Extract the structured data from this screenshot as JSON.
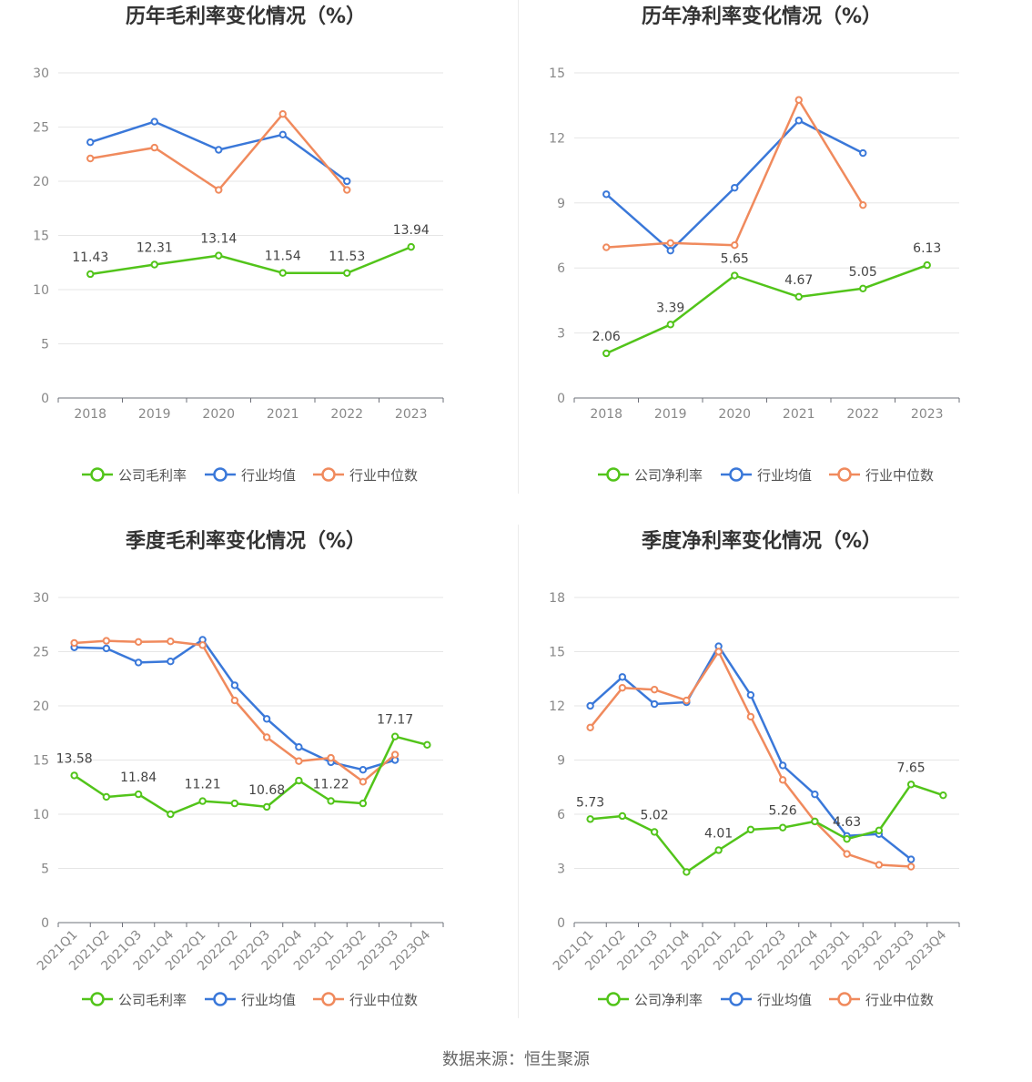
{
  "footer": {
    "source": "数据来源：恒生聚源"
  },
  "colors": {
    "company": "#52c41a",
    "avg": "#3a78d9",
    "median": "#f08a5d"
  },
  "legend": {
    "annual_gross": [
      "公司毛利率",
      "行业均值",
      "行业中位数"
    ],
    "annual_net": [
      "公司净利率",
      "行业均值",
      "行业中位数"
    ],
    "quarter_gross": [
      "公司毛利率",
      "行业均值",
      "行业中位数"
    ],
    "quarter_net": [
      "公司净利率",
      "行业均值",
      "行业中位数"
    ]
  },
  "chart_data": [
    {
      "type": "line",
      "title": "历年毛利率变化情况（%）",
      "categories": [
        "2018",
        "2019",
        "2020",
        "2021",
        "2022",
        "2023"
      ],
      "ylim": [
        0,
        30
      ],
      "yticks": [
        0,
        5,
        10,
        15,
        20,
        25,
        30
      ],
      "grid": true,
      "legend_position": "bottom",
      "series": [
        {
          "name": "公司毛利率",
          "values": [
            11.43,
            12.31,
            13.14,
            11.54,
            11.53,
            13.94
          ],
          "labels": [
            "11.43",
            "12.31",
            "13.14",
            "11.54",
            "11.53",
            "13.94"
          ]
        },
        {
          "name": "行业均值",
          "values": [
            23.6,
            25.5,
            22.9,
            24.3,
            20.0,
            null
          ]
        },
        {
          "name": "行业中位数",
          "values": [
            22.1,
            23.1,
            19.2,
            26.2,
            19.2,
            null
          ]
        }
      ]
    },
    {
      "type": "line",
      "title": "历年净利率变化情况（%）",
      "categories": [
        "2018",
        "2019",
        "2020",
        "2021",
        "2022",
        "2023"
      ],
      "ylim": [
        0,
        15
      ],
      "yticks": [
        0,
        3,
        6,
        9,
        12,
        15
      ],
      "grid": true,
      "legend_position": "bottom",
      "series": [
        {
          "name": "公司净利率",
          "values": [
            2.06,
            3.39,
            5.65,
            4.67,
            5.05,
            6.13
          ],
          "labels": [
            "2.06",
            "3.39",
            "5.65",
            "4.67",
            "5.05",
            "6.13"
          ]
        },
        {
          "name": "行业均值",
          "values": [
            9.4,
            6.8,
            9.7,
            12.8,
            11.3,
            null
          ]
        },
        {
          "name": "行业中位数",
          "values": [
            6.95,
            7.15,
            7.05,
            13.75,
            8.9,
            null
          ]
        }
      ]
    },
    {
      "type": "line",
      "title": "季度毛利率变化情况（%）",
      "categories": [
        "2021Q1",
        "2021Q2",
        "2021Q3",
        "2021Q4",
        "2022Q1",
        "2022Q2",
        "2022Q3",
        "2022Q4",
        "2023Q1",
        "2023Q2",
        "2023Q3",
        "2023Q4"
      ],
      "ylim": [
        0,
        30
      ],
      "yticks": [
        0,
        5,
        10,
        15,
        20,
        25,
        30
      ],
      "grid": true,
      "legend_position": "bottom",
      "series": [
        {
          "name": "公司毛利率",
          "values": [
            13.58,
            11.6,
            11.84,
            10.0,
            11.21,
            11.0,
            10.68,
            13.1,
            11.22,
            11.0,
            17.17,
            16.4
          ],
          "labels": [
            "13.58",
            "",
            "11.84",
            "",
            "11.21",
            "",
            "10.68",
            "",
            "11.22",
            "",
            "17.17",
            ""
          ]
        },
        {
          "name": "行业均值",
          "values": [
            25.4,
            25.3,
            24.0,
            24.1,
            26.1,
            21.9,
            18.8,
            16.2,
            14.8,
            14.1,
            15.0,
            null
          ]
        },
        {
          "name": "行业中位数",
          "values": [
            25.8,
            26.0,
            25.9,
            25.95,
            25.6,
            20.5,
            17.1,
            14.9,
            15.2,
            13.0,
            15.5,
            null
          ]
        }
      ]
    },
    {
      "type": "line",
      "title": "季度净利率变化情况（%）",
      "categories": [
        "2021Q1",
        "2021Q2",
        "2021Q3",
        "2021Q4",
        "2022Q1",
        "2022Q2",
        "2022Q3",
        "2022Q4",
        "2023Q1",
        "2023Q2",
        "2023Q3",
        "2023Q4"
      ],
      "ylim": [
        0,
        18
      ],
      "yticks": [
        0,
        3,
        6,
        9,
        12,
        15,
        18
      ],
      "grid": true,
      "legend_position": "bottom",
      "series": [
        {
          "name": "公司净利率",
          "values": [
            5.73,
            5.9,
            5.02,
            2.8,
            4.01,
            5.15,
            5.26,
            5.6,
            4.63,
            5.1,
            7.65,
            7.05
          ],
          "labels": [
            "5.73",
            "",
            "5.02",
            "",
            "4.01",
            "",
            "5.26",
            "",
            "4.63",
            "",
            "7.65",
            ""
          ]
        },
        {
          "name": "行业均值",
          "values": [
            12.0,
            13.6,
            12.1,
            12.2,
            15.3,
            12.6,
            8.7,
            7.1,
            4.8,
            4.9,
            3.5,
            null
          ]
        },
        {
          "name": "行业中位数",
          "values": [
            10.8,
            13.0,
            12.9,
            12.3,
            15.0,
            11.4,
            7.9,
            5.6,
            3.8,
            3.2,
            3.1,
            null
          ]
        }
      ]
    }
  ]
}
